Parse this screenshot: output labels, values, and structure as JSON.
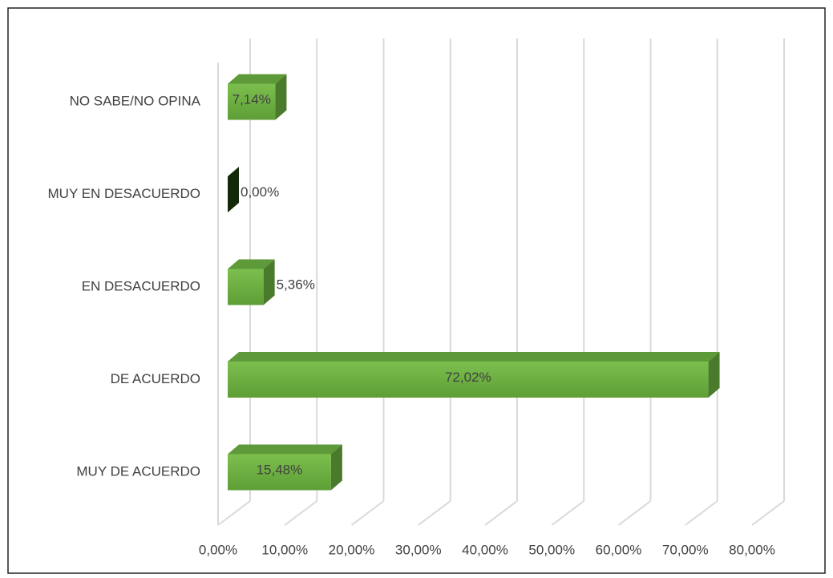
{
  "chart_data": {
    "type": "bar3d_horizontal",
    "categories": [
      "MUY DE ACUERDO",
      "DE ACUERDO",
      "EN DESACUERDO",
      "MUY EN DESACUERDO",
      "NO SABE/NO OPINA"
    ],
    "values": [
      15.48,
      72.02,
      5.36,
      0,
      7.14
    ],
    "value_labels": [
      "15,48%",
      "72,02%",
      "5,36%",
      "0,00%",
      "7,14%"
    ],
    "color": "#6aa840",
    "xlim": [
      0,
      80
    ],
    "xticks": [
      {
        "value": 0,
        "label": "0,00%"
      },
      {
        "value": 10,
        "label": "10,00%"
      },
      {
        "value": 20,
        "label": "20,00%"
      },
      {
        "value": 30,
        "label": "30,00%"
      },
      {
        "value": 40,
        "label": "40,00%"
      },
      {
        "value": 50,
        "label": "50,00%"
      },
      {
        "value": 60,
        "label": "60,00%"
      },
      {
        "value": 70,
        "label": "70,00%"
      },
      {
        "value": 80,
        "label": "80,00%"
      }
    ],
    "grid": true
  }
}
